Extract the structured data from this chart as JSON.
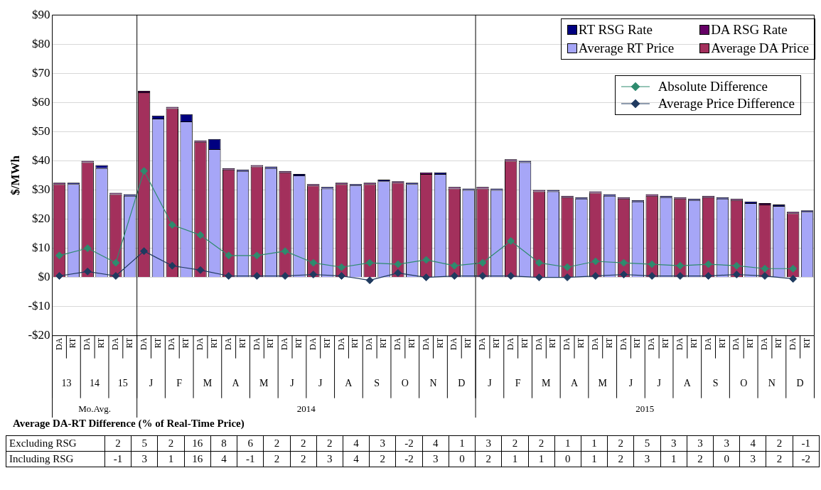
{
  "chart_data": [
    {
      "type": "bar",
      "ylabel": "$/MWh",
      "stacked": true,
      "categories": [
        "DA",
        "RT",
        "DA",
        "RT",
        "DA",
        "RT",
        "DA",
        "RT",
        "DA",
        "RT",
        "DA",
        "RT",
        "DA",
        "RT",
        "DA",
        "RT",
        "DA",
        "RT",
        "DA",
        "RT",
        "DA",
        "RT",
        "DA",
        "RT",
        "DA",
        "RT",
        "DA",
        "RT",
        "DA",
        "RT",
        "DA",
        "RT",
        "DA",
        "RT",
        "DA",
        "RT",
        "DA",
        "RT",
        "DA",
        "RT",
        "DA",
        "RT",
        "DA",
        "RT",
        "DA",
        "RT",
        "DA",
        "RT",
        "DA",
        "RT",
        "DA",
        "RT",
        "DA",
        "RT"
      ],
      "series": [
        {
          "name": "Average DA Price",
          "color": "#a3305c",
          "values": [
            32,
            null,
            39.5,
            null,
            28.5,
            null,
            63.5,
            null,
            58,
            null,
            46.5,
            null,
            37,
            null,
            38,
            null,
            36,
            null,
            31.5,
            null,
            32,
            null,
            32,
            null,
            32.5,
            null,
            35.5,
            null,
            30.5,
            null,
            30.5,
            null,
            40,
            null,
            29.5,
            null,
            27.5,
            null,
            29,
            null,
            27,
            null,
            28,
            null,
            27,
            null,
            27.5,
            null,
            26.5,
            null,
            25,
            null,
            22,
            null
          ]
        },
        {
          "name": "DA RSG Rate",
          "color": "#660066",
          "values": [
            0.5,
            null,
            0.5,
            null,
            0.5,
            null,
            0.5,
            null,
            0.5,
            null,
            0.5,
            null,
            0.5,
            null,
            0.5,
            null,
            0.5,
            null,
            0.5,
            null,
            0.5,
            null,
            0.5,
            null,
            0.5,
            null,
            0.5,
            null,
            0.5,
            null,
            0.5,
            null,
            0.5,
            null,
            0.5,
            null,
            0.5,
            null,
            0.5,
            null,
            0.5,
            null,
            0.5,
            null,
            0.5,
            null,
            0.5,
            null,
            0.5,
            null,
            0.5,
            null,
            0.5,
            null
          ]
        },
        {
          "name": "Average RT Price",
          "color": "#a6a6f7",
          "values": [
            null,
            32,
            null,
            37.5,
            null,
            28,
            null,
            54.5,
            null,
            53.5,
            null,
            44,
            null,
            36.5,
            null,
            37.5,
            null,
            35,
            null,
            30.5,
            null,
            31.5,
            null,
            33,
            null,
            32,
            null,
            35.5,
            null,
            30,
            null,
            30,
            null,
            39.5,
            null,
            29.5,
            null,
            27,
            null,
            28,
            null,
            26,
            null,
            27.5,
            null,
            26.5,
            null,
            27,
            null,
            25.5,
            null,
            24.5,
            null,
            22.5
          ]
        },
        {
          "name": "RT RSG Rate",
          "color": "#000080",
          "values": [
            null,
            0.5,
            null,
            1,
            null,
            0.5,
            null,
            1,
            null,
            2.5,
            null,
            3.5,
            null,
            0.5,
            null,
            0.5,
            null,
            0.5,
            null,
            0.5,
            null,
            0.5,
            null,
            0.5,
            null,
            0.5,
            null,
            0.5,
            null,
            0.5,
            null,
            0.5,
            null,
            0.5,
            null,
            0.5,
            null,
            0.5,
            null,
            0.5,
            null,
            0.5,
            null,
            0.5,
            null,
            0.5,
            null,
            0.5,
            null,
            0.5,
            null,
            0.5,
            null,
            0.5
          ]
        },
        {
          "name": "Absolute Difference",
          "type": "line",
          "color": "#2e8b6e",
          "values": [
            7.5,
            null,
            10,
            null,
            5,
            null,
            36.5,
            null,
            18,
            null,
            14.5,
            null,
            7.5,
            null,
            7.5,
            null,
            9,
            null,
            5,
            null,
            3.5,
            null,
            5,
            null,
            4.5,
            null,
            6,
            null,
            4,
            null,
            5,
            null,
            12.5,
            null,
            5,
            null,
            3.5,
            null,
            5.5,
            null,
            5,
            null,
            4.5,
            null,
            4,
            null,
            4.5,
            null,
            4,
            null,
            3,
            null,
            3,
            null
          ]
        },
        {
          "name": "Average Price Difference",
          "type": "line",
          "color": "#1f3a5f",
          "values": [
            0.5,
            null,
            2,
            null,
            0.5,
            null,
            9,
            null,
            4,
            null,
            2.5,
            null,
            0.5,
            null,
            0.5,
            null,
            0.5,
            null,
            1,
            null,
            0.5,
            null,
            -1,
            null,
            1.5,
            null,
            0,
            null,
            0.5,
            null,
            0.5,
            null,
            0.5,
            null,
            0,
            null,
            0,
            null,
            0.5,
            null,
            1,
            null,
            0.5,
            null,
            0.5,
            null,
            0.5,
            null,
            1,
            null,
            0.5,
            null,
            -0.5,
            null
          ]
        }
      ],
      "ylim": [
        -20,
        90
      ],
      "yticks": [
        {
          "value": -20,
          "label": "-$20"
        },
        {
          "value": -10,
          "label": "-$10"
        },
        {
          "value": 0,
          "label": "$0"
        },
        {
          "value": 10,
          "label": "$10"
        },
        {
          "value": 20,
          "label": "$20"
        },
        {
          "value": 30,
          "label": "$30"
        },
        {
          "value": 40,
          "label": "$40"
        },
        {
          "value": 50,
          "label": "$50"
        },
        {
          "value": 60,
          "label": "$60"
        },
        {
          "value": 70,
          "label": "$70"
        },
        {
          "value": 80,
          "label": "$80"
        },
        {
          "value": 90,
          "label": "$90"
        }
      ],
      "grid": "y",
      "legend": "top right",
      "marker": "diamond",
      "line_style": "solid",
      "annotations": [
        "13",
        "14",
        "15",
        "J",
        "F",
        "M",
        "A",
        "M",
        "J",
        "J",
        "A",
        "S",
        "O",
        "N",
        "D",
        "J",
        "F",
        "M",
        "A",
        "M",
        "J",
        "J",
        "A",
        "S",
        "O",
        "N",
        "D",
        "Mo.Avg.",
        "2014",
        "2015"
      ]
    },
    {
      "type": "other",
      "title": "Average DA-RT Difference (% of Real-Time Price)",
      "y_categories": [
        "Excluding RSG",
        "Including RSG"
      ],
      "annotations": [
        "2",
        "5",
        "2",
        "16",
        "8",
        "6",
        "2",
        "2",
        "2",
        "4",
        "3",
        "-2",
        "4",
        "1",
        "3",
        "2",
        "2",
        "1",
        "1",
        "2",
        "5",
        "3",
        "3",
        "3",
        "4",
        "2",
        "-1",
        "-1",
        "3",
        "1",
        "16",
        "4",
        "-1",
        "2",
        "2",
        "3",
        "4",
        "2",
        "-2",
        "3",
        "0",
        "2",
        "1",
        "1",
        "0",
        "1",
        "2",
        "3",
        "1",
        "2",
        "0",
        "3",
        "2",
        "-2"
      ]
    }
  ]
}
